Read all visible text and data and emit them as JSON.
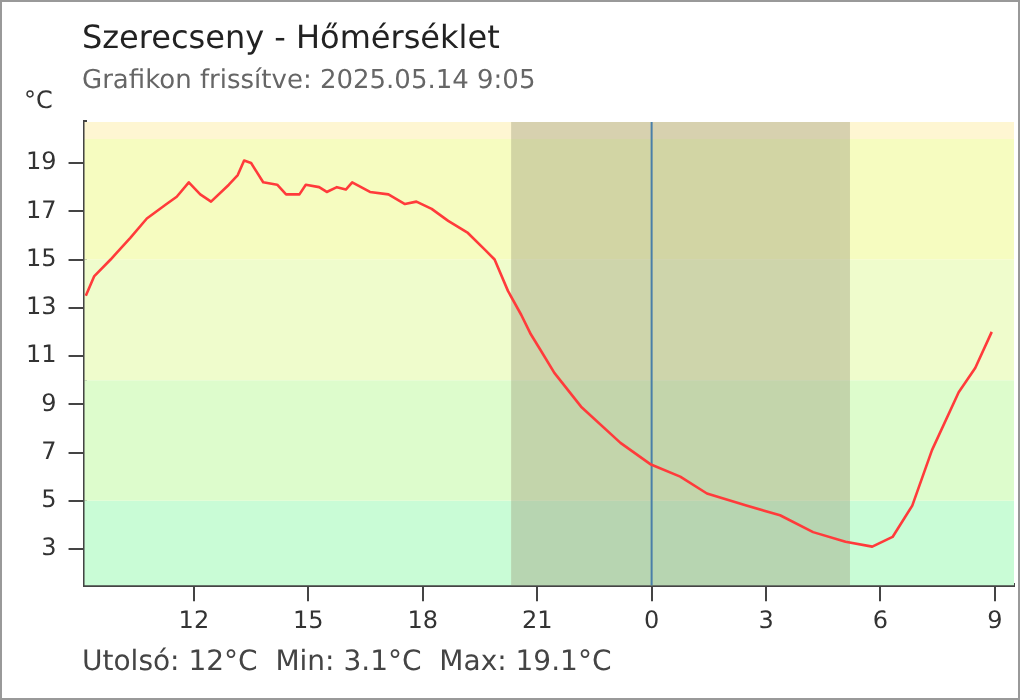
{
  "chart_data": {
    "type": "line",
    "title": "Szerecseny - Hőmérséklet",
    "subtitle": "Grafikon frissítve: 2025.05.14 9:05",
    "ylabel": "°C",
    "annotations": [
      "Utolsó: 12°C  Min: 3.1°C  Max: 19.1°C"
    ],
    "series": [
      {
        "color": "#ff3b3b",
        "x": [
          "2025-05-13T09:10",
          "2025-05-13T09:23",
          "2025-05-13T09:49",
          "2025-05-13T10:20",
          "2025-05-13T10:46",
          "2025-05-13T11:17",
          "2025-05-13T11:33",
          "2025-05-13T11:52",
          "2025-05-13T12:10",
          "2025-05-13T12:27",
          "2025-05-13T12:55",
          "2025-05-13T13:09",
          "2025-05-13T13:19",
          "2025-05-13T13:30",
          "2025-05-13T13:49",
          "2025-05-13T14:11",
          "2025-05-13T14:25",
          "2025-05-13T14:46",
          "2025-05-13T14:56",
          "2025-05-13T15:17",
          "2025-05-13T15:29",
          "2025-05-13T15:45",
          "2025-05-13T15:59",
          "2025-05-13T16:09",
          "2025-05-13T16:37",
          "2025-05-13T17:06",
          "2025-05-13T17:32",
          "2025-05-13T17:50",
          "2025-05-13T18:14",
          "2025-05-13T18:40",
          "2025-05-13T19:11",
          "2025-05-13T19:38",
          "2025-05-13T19:53",
          "2025-05-13T20:14",
          "2025-05-13T20:35",
          "2025-05-13T20:50",
          "2025-05-13T21:04",
          "2025-05-13T21:27",
          "2025-05-13T22:09",
          "2025-05-13T23:11",
          "2025-05-13T23:59",
          "2025-05-14T00:45",
          "2025-05-14T01:27",
          "2025-05-14T02:29",
          "2025-05-14T03:22",
          "2025-05-14T04:14",
          "2025-05-14T05:05",
          "2025-05-14T05:47",
          "2025-05-14T06:19",
          "2025-05-14T06:50",
          "2025-05-14T07:21",
          "2025-05-14T08:03",
          "2025-05-14T08:29",
          "2025-05-14T08:55"
        ],
        "values": [
          13.5,
          14.3,
          15.0,
          15.9,
          16.7,
          17.3,
          17.6,
          18.2,
          17.7,
          17.4,
          18.1,
          18.5,
          19.1,
          19.0,
          18.2,
          18.1,
          17.7,
          17.7,
          18.1,
          18.0,
          17.8,
          18.0,
          17.9,
          18.2,
          17.8,
          17.7,
          17.3,
          17.4,
          17.1,
          16.6,
          16.1,
          15.4,
          15.0,
          13.7,
          12.7,
          11.9,
          11.3,
          10.3,
          8.9,
          7.4,
          6.5,
          6.0,
          5.3,
          4.8,
          4.4,
          3.7,
          3.3,
          3.1,
          3.5,
          4.8,
          7.1,
          9.5,
          10.5,
          12.0
        ]
      }
    ],
    "xlim": [
      "2025-05-13T09:08",
      "2025-05-14T09:30"
    ],
    "xticks": [
      {
        "value": "2025-05-13T12:00",
        "label": "12"
      },
      {
        "value": "2025-05-13T15:00",
        "label": "15"
      },
      {
        "value": "2025-05-13T18:00",
        "label": "18"
      },
      {
        "value": "2025-05-13T21:00",
        "label": "21"
      },
      {
        "value": "2025-05-14T00:00",
        "label": "0"
      },
      {
        "value": "2025-05-14T03:00",
        "label": "3"
      },
      {
        "value": "2025-05-14T06:00",
        "label": "6"
      },
      {
        "value": "2025-05-14T09:00",
        "label": "9"
      }
    ],
    "ylim": [
      1.5,
      20.7
    ],
    "yticks": [
      3,
      5,
      7,
      9,
      11,
      13,
      15,
      17,
      19
    ],
    "bands": [
      {
        "axis": "y",
        "from": 1.5,
        "to": 5,
        "color": "#c9fcd6"
      },
      {
        "axis": "y",
        "from": 5,
        "to": 10,
        "color": "#ddfccc"
      },
      {
        "axis": "y",
        "from": 10,
        "to": 15,
        "color": "#effccc"
      },
      {
        "axis": "y",
        "from": 15,
        "to": 20,
        "color": "#f6fcc0"
      },
      {
        "axis": "y",
        "from": 20,
        "to": 20.7,
        "color": "#fef6d2"
      },
      {
        "axis": "x",
        "from": "2025-05-13T20:19",
        "to": "2025-05-14T05:12",
        "color": "#9e9a7a"
      }
    ],
    "ref_lines": [
      {
        "axis": "x",
        "value": "2025-05-14T00:00",
        "color": "#4a7fa8"
      }
    ],
    "grid": false,
    "legend": false,
    "marker": "none",
    "line_style": "solid"
  }
}
